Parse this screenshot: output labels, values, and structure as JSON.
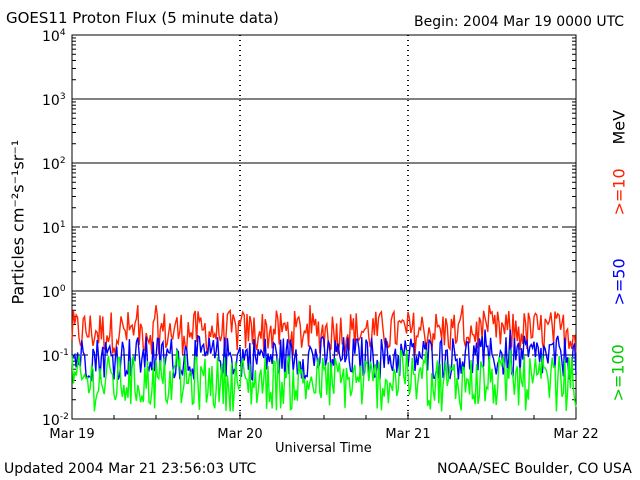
{
  "header": {
    "title": "GOES11 Proton Flux (5 minute data)",
    "begin": "Begin: 2004 Mar 19 0000 UTC"
  },
  "footer": {
    "updated": "Updated 2004 Mar 21 23:56:03 UTC",
    "credit": "NOAA/SEC Boulder, CO USA"
  },
  "chart_data": {
    "type": "line",
    "title": "GOES11 Proton Flux (5 minute data)",
    "xlabel": "Universal Time",
    "ylabel": "Particles cm⁻²s⁻¹sr⁻¹",
    "yscale": "log",
    "ylim": [
      0.01,
      10000
    ],
    "yticks": [
      {
        "exp": "-2",
        "value": 0.01
      },
      {
        "exp": "-1",
        "value": 0.1
      },
      {
        "exp": "0",
        "value": 1
      },
      {
        "exp": "1",
        "value": 10
      },
      {
        "exp": "2",
        "value": 100
      },
      {
        "exp": "3",
        "value": 1000
      },
      {
        "exp": "4",
        "value": 10000
      }
    ],
    "ytick_base": "10",
    "xticks": [
      "Mar 19",
      "Mar 20",
      "Mar 21",
      "Mar 22"
    ],
    "xlim": [
      "2004-03-19 00:00",
      "2004-03-22 00:00"
    ],
    "grid": "horizontal lines at each decade (10^-1 dashed, 10^1 dashed)",
    "series": [
      {
        "name": ">=10",
        "color": "#ff2200",
        "typical_range": [
          0.1,
          0.5
        ],
        "peak": 0.6
      },
      {
        "name": ">=50",
        "color": "#0000ff",
        "typical_range": [
          0.04,
          0.2
        ],
        "peak": 0.25
      },
      {
        "name": ">=100",
        "color": "#00ff00",
        "typical_range": [
          0.013,
          0.1
        ],
        "peak": 0.12
      }
    ],
    "legend_placement": "right, rotated vertical",
    "legend_unit": "MeV"
  }
}
